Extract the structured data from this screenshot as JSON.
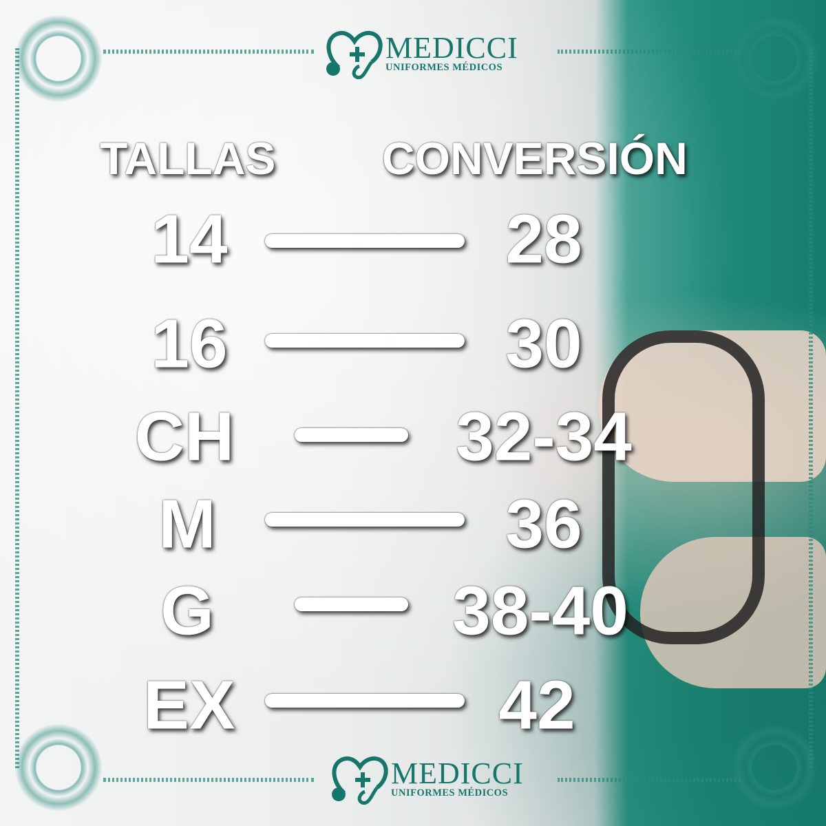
{
  "logo": {
    "brand": "MEDICCI",
    "tagline": "UNIFORMES MÉDICOS",
    "color": "#17766a"
  },
  "headers": {
    "left": "TALLAS",
    "right": "CONVERSIÓN"
  },
  "rows": [
    {
      "talla": "14",
      "conversion": "28"
    },
    {
      "talla": "16",
      "conversion": "30"
    },
    {
      "talla": "CH",
      "conversion": "32-34"
    },
    {
      "talla": "M",
      "conversion": "36"
    },
    {
      "talla": "G",
      "conversion": "38-40"
    },
    {
      "talla": "EX",
      "conversion": "42"
    }
  ]
}
